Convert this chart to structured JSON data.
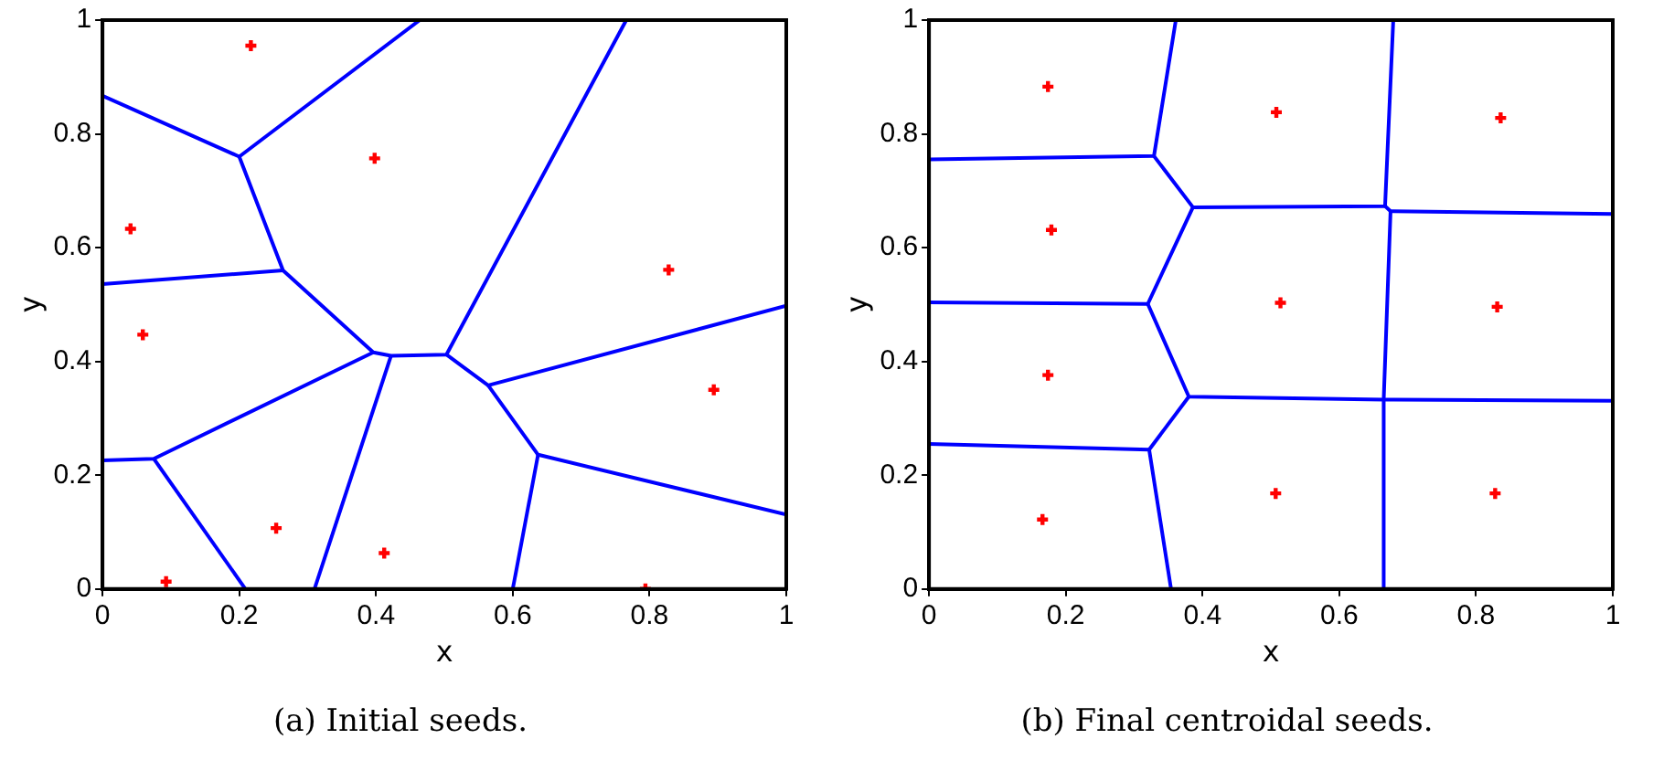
{
  "chart_data": [
    {
      "type": "scatter",
      "title": "(a) Initial seeds.",
      "xlabel": "x",
      "ylabel": "y",
      "xlim": [
        0,
        1
      ],
      "ylim": [
        0,
        1
      ],
      "xticks": [
        0,
        0.2,
        0.4,
        0.6,
        0.8,
        1
      ],
      "yticks": [
        0,
        0.2,
        0.4,
        0.6,
        0.8,
        1
      ],
      "grid": false,
      "legend": false,
      "series": [
        {
          "color": "#ff0000",
          "marker": "cross",
          "x": [
            0.217,
            0.398,
            0.041,
            0.828,
            0.059,
            0.894,
            0.254,
            0.412,
            0.093,
            0.794
          ],
          "values": [
            0.955,
            0.757,
            0.633,
            0.561,
            0.447,
            0.35,
            0.107,
            0.063,
            0.013,
            0.0
          ]
        },
        {
          "type": "line",
          "color": "#0000ff",
          "x": [
            0,
            0.2,
            0.464
          ],
          "values": [
            0.867,
            0.76,
            1
          ]
        },
        {
          "type": "line",
          "color": "#0000ff",
          "x": [
            0.2,
            0.264,
            0.396,
            0.422,
            0.503,
            0.766
          ],
          "values": [
            0.76,
            0.56,
            0.416,
            0.41,
            0.412,
            1
          ]
        },
        {
          "type": "line",
          "color": "#0000ff",
          "x": [
            0,
            0.264
          ],
          "values": [
            0.536,
            0.56
          ]
        },
        {
          "type": "line",
          "color": "#0000ff",
          "x": [
            0.503,
            0.564,
            1
          ],
          "values": [
            0.412,
            0.358,
            0.498
          ]
        },
        {
          "type": "line",
          "color": "#0000ff",
          "x": [
            0.564,
            0.637,
            1
          ],
          "values": [
            0.358,
            0.236,
            0.131
          ]
        },
        {
          "type": "line",
          "color": "#0000ff",
          "x": [
            0.637,
            0.6
          ],
          "values": [
            0.236,
            0
          ]
        },
        {
          "type": "line",
          "color": "#0000ff",
          "x": [
            0.422,
            0.31
          ],
          "values": [
            0.41,
            0
          ]
        },
        {
          "type": "line",
          "color": "#0000ff",
          "x": [
            0.396,
            0.075,
            0
          ],
          "values": [
            0.416,
            0.229,
            0.226
          ]
        },
        {
          "type": "line",
          "color": "#0000ff",
          "x": [
            0.075,
            0.209
          ],
          "values": [
            0.229,
            0
          ]
        }
      ]
    },
    {
      "type": "scatter",
      "title": "(b) Final centroidal seeds.",
      "xlabel": "x",
      "ylabel": "y",
      "xlim": [
        0,
        1
      ],
      "ylim": [
        0,
        1
      ],
      "xticks": [
        0,
        0.2,
        0.4,
        0.6,
        0.8,
        1
      ],
      "yticks": [
        0,
        0.2,
        0.4,
        0.6,
        0.8,
        1
      ],
      "grid": false,
      "legend": false,
      "series": [
        {
          "color": "#ff0000",
          "marker": "cross",
          "x": [
            0.174,
            0.508,
            0.836,
            0.179,
            0.514,
            0.831,
            0.174,
            0.166,
            0.507,
            0.828
          ],
          "values": [
            0.883,
            0.838,
            0.828,
            0.631,
            0.503,
            0.496,
            0.376,
            0.122,
            0.168,
            0.168
          ]
        },
        {
          "type": "line",
          "color": "#0000ff",
          "x": [
            0,
            0.329,
            0.361
          ],
          "values": [
            0.755,
            0.761,
            1
          ]
        },
        {
          "type": "line",
          "color": "#0000ff",
          "x": [
            0.329,
            0.386,
            0.667,
            0.679
          ],
          "values": [
            0.761,
            0.671,
            0.673,
            1
          ]
        },
        {
          "type": "line",
          "color": "#0000ff",
          "x": [
            0.667,
            0.675,
            1
          ],
          "values": [
            0.673,
            0.664,
            0.659
          ]
        },
        {
          "type": "line",
          "color": "#0000ff",
          "x": [
            0.675,
            0.665,
            0.665
          ],
          "values": [
            0.664,
            0.333,
            0
          ]
        },
        {
          "type": "line",
          "color": "#0000ff",
          "x": [
            0,
            0.32,
            0.386
          ],
          "values": [
            0.504,
            0.501,
            0.671
          ]
        },
        {
          "type": "line",
          "color": "#0000ff",
          "x": [
            0.32,
            0.38,
            0.665,
            1
          ],
          "values": [
            0.501,
            0.338,
            0.333,
            0.331
          ]
        },
        {
          "type": "line",
          "color": "#0000ff",
          "x": [
            0.38,
            0.322
          ],
          "values": [
            0.338,
            0.245
          ]
        },
        {
          "type": "line",
          "color": "#0000ff",
          "x": [
            0,
            0.322,
            0.354
          ],
          "values": [
            0.255,
            0.245,
            0
          ]
        }
      ]
    }
  ]
}
